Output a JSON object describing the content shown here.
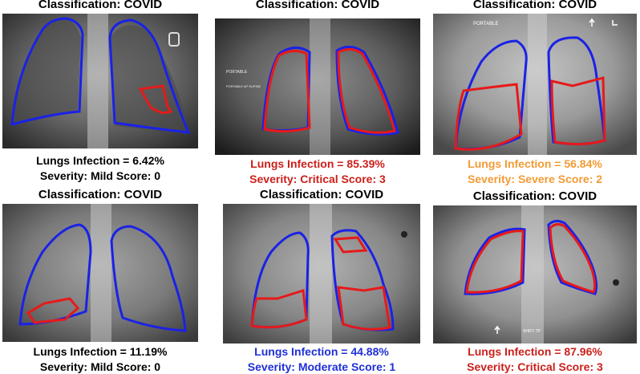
{
  "panels": [
    {
      "classification": "Classification: COVID",
      "infection": "Lungs Infection = 6.42%",
      "severity": "Severity: Mild Score: 0",
      "color": "#000000"
    },
    {
      "classification": "Classification: COVID",
      "infection": "Lungs Infection = 85.39%",
      "severity": "Severity: Critical Score: 3",
      "color": "#cc1f1a"
    },
    {
      "classification": "Classification: COVID",
      "infection": "Lungs Infection = 56.84%",
      "severity": "Severity: Severe Score: 2",
      "color": "#f29b35"
    },
    {
      "classification": "Classification: COVID",
      "infection": "Lungs Infection = 11.19%",
      "severity": "Severity: Mild Score: 0",
      "color": "#000000"
    },
    {
      "classification": "Classification: COVID",
      "infection": "Lungs Infection = 44.88%",
      "severity": "Severity: Moderate Score: 1",
      "color": "#1f2fd6"
    },
    {
      "classification": "Classification: COVID",
      "infection": "Lungs Infection = 87.96%",
      "severity": "Severity: Critical Score: 3",
      "color": "#cc1f1a"
    }
  ],
  "image_labels": {
    "panel2_marker_top": "PORTABLE",
    "panel2_marker_side": "PORTABLE AP SUPINE",
    "panel3_marker": "PORTABLE",
    "panel6_marker": "SHIFT-TP"
  },
  "colors": {
    "lung_outline": "#1a22e6",
    "infection_outline": "#e61a1a"
  }
}
